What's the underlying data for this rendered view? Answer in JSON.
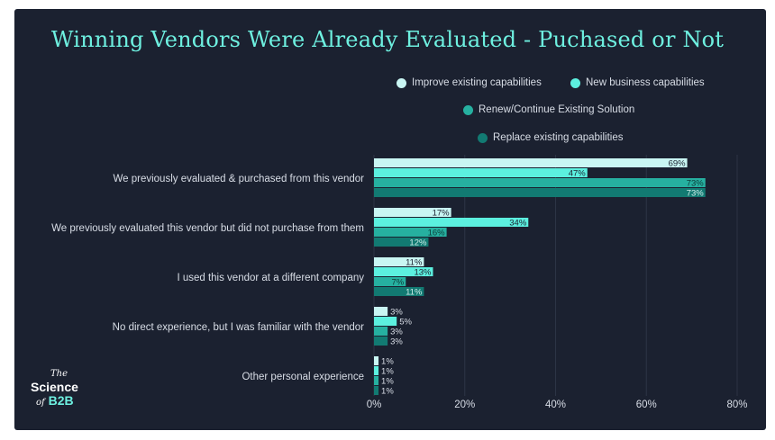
{
  "chart_data": {
    "type": "bar",
    "orientation": "horizontal",
    "title": "Winning Vendors Were Already Evaluated - Puchased or Not",
    "categories": [
      "We previously evaluated & purchased from this vendor",
      "We previously evaluated this vendor but did not purchase from them",
      "I used this vendor at a different company",
      "No direct experience, but I was familiar with the vendor",
      "Other personal experience"
    ],
    "series": [
      {
        "name": "Improve existing capabilities",
        "color": "#c9f6f3",
        "values": [
          69,
          17,
          11,
          3,
          1
        ]
      },
      {
        "name": "New business capabilities",
        "color": "#5cf0df",
        "values": [
          47,
          34,
          13,
          5,
          1
        ]
      },
      {
        "name": "Renew/Continue Existing Solution",
        "color": "#26b0a0",
        "values": [
          73,
          16,
          7,
          3,
          1
        ]
      },
      {
        "name": "Replace existing capabilities",
        "color": "#127a72",
        "values": [
          73,
          12,
          11,
          3,
          1
        ]
      }
    ],
    "xlim": [
      0,
      80
    ],
    "xticks": [
      "0%",
      "20%",
      "40%",
      "60%",
      "80%"
    ],
    "grid": true,
    "legend": "top-right",
    "value_suffix": "%"
  },
  "logo": {
    "line1": "The",
    "line2": "Science",
    "line3a": "of",
    "line3b": "B2B"
  },
  "colors": {
    "background": "#1b2130",
    "title": "#6ef0e0"
  }
}
